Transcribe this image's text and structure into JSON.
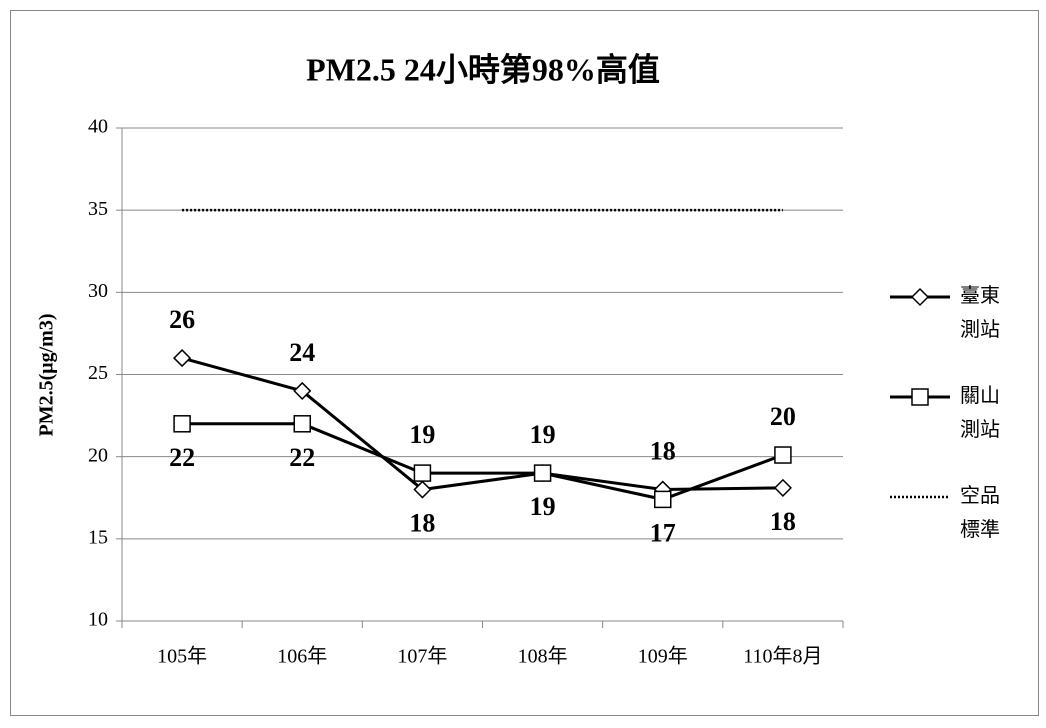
{
  "chart_data": {
    "type": "line",
    "title": "PM2.5 24小時第98%高值",
    "y_label": "PM2.5(μg/m3)",
    "categories": [
      "105年",
      "106年",
      "107年",
      "108年",
      "109年",
      "110年8月"
    ],
    "series": [
      {
        "name": "臺東測站",
        "color": "#000000",
        "marker": "diamond",
        "values": [
          26,
          24,
          18,
          19,
          18,
          18.1
        ],
        "value_labels": [
          "26",
          "24",
          "18",
          "19",
          "18",
          "18"
        ]
      },
      {
        "name": "關山測站",
        "color": "#000000",
        "marker": "square",
        "values": [
          22,
          22,
          19,
          19,
          17.4,
          20.1
        ],
        "value_labels": [
          "22",
          "22",
          "19",
          "19",
          "17",
          "20"
        ]
      },
      {
        "name": "空品標準",
        "color": "#000000",
        "marker": "none",
        "dash": "dotted",
        "values": [
          35,
          35,
          35,
          35,
          35,
          35
        ]
      }
    ],
    "ylim": [
      10,
      40
    ],
    "yticks": [
      10,
      15,
      20,
      25,
      30,
      35,
      40
    ],
    "grid": true,
    "legend": "right"
  }
}
